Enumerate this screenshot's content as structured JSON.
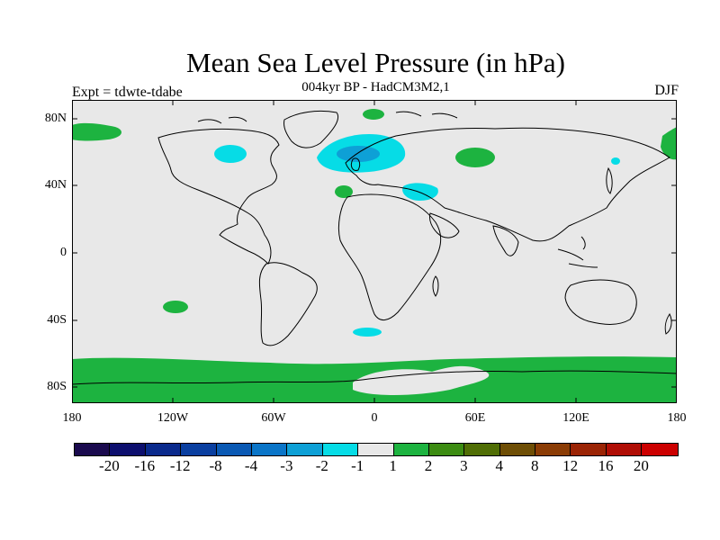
{
  "title": "Mean Sea Level Pressure (in hPa)",
  "subtitle": "004kyr BP - HadCM3M2,1",
  "left_label": "Expt = tdwte-tdabe",
  "right_label": "DJF",
  "lat_ticks": [
    "80N",
    "40N",
    "0",
    "40S",
    "80S"
  ],
  "lon_ticks": [
    "180",
    "120W",
    "60W",
    "0",
    "60E",
    "120E",
    "180"
  ],
  "colorbar": {
    "colors": [
      "#1a0a4e",
      "#0d0f6e",
      "#0a2a8c",
      "#0a3fa0",
      "#0a59b4",
      "#0a75c8",
      "#0ea0d6",
      "#06dce6",
      "#e8e8e8",
      "#1db340",
      "#3c8c12",
      "#506e05",
      "#6e4e05",
      "#8b3c05",
      "#9b2405",
      "#b00e05",
      "#cc0000"
    ],
    "labels": [
      "-20",
      "-16",
      "-12",
      "-8",
      "-4",
      "-3",
      "-2",
      "-1",
      "1",
      "2",
      "3",
      "4",
      "8",
      "12",
      "16",
      "20"
    ]
  },
  "map": {
    "ocean_color": "#e8e8e8",
    "positive_color": "#1db340",
    "negative_light_color": "#06dce6",
    "negative_dark_color": "#0ea0d6",
    "coast_color": "#000000"
  }
}
